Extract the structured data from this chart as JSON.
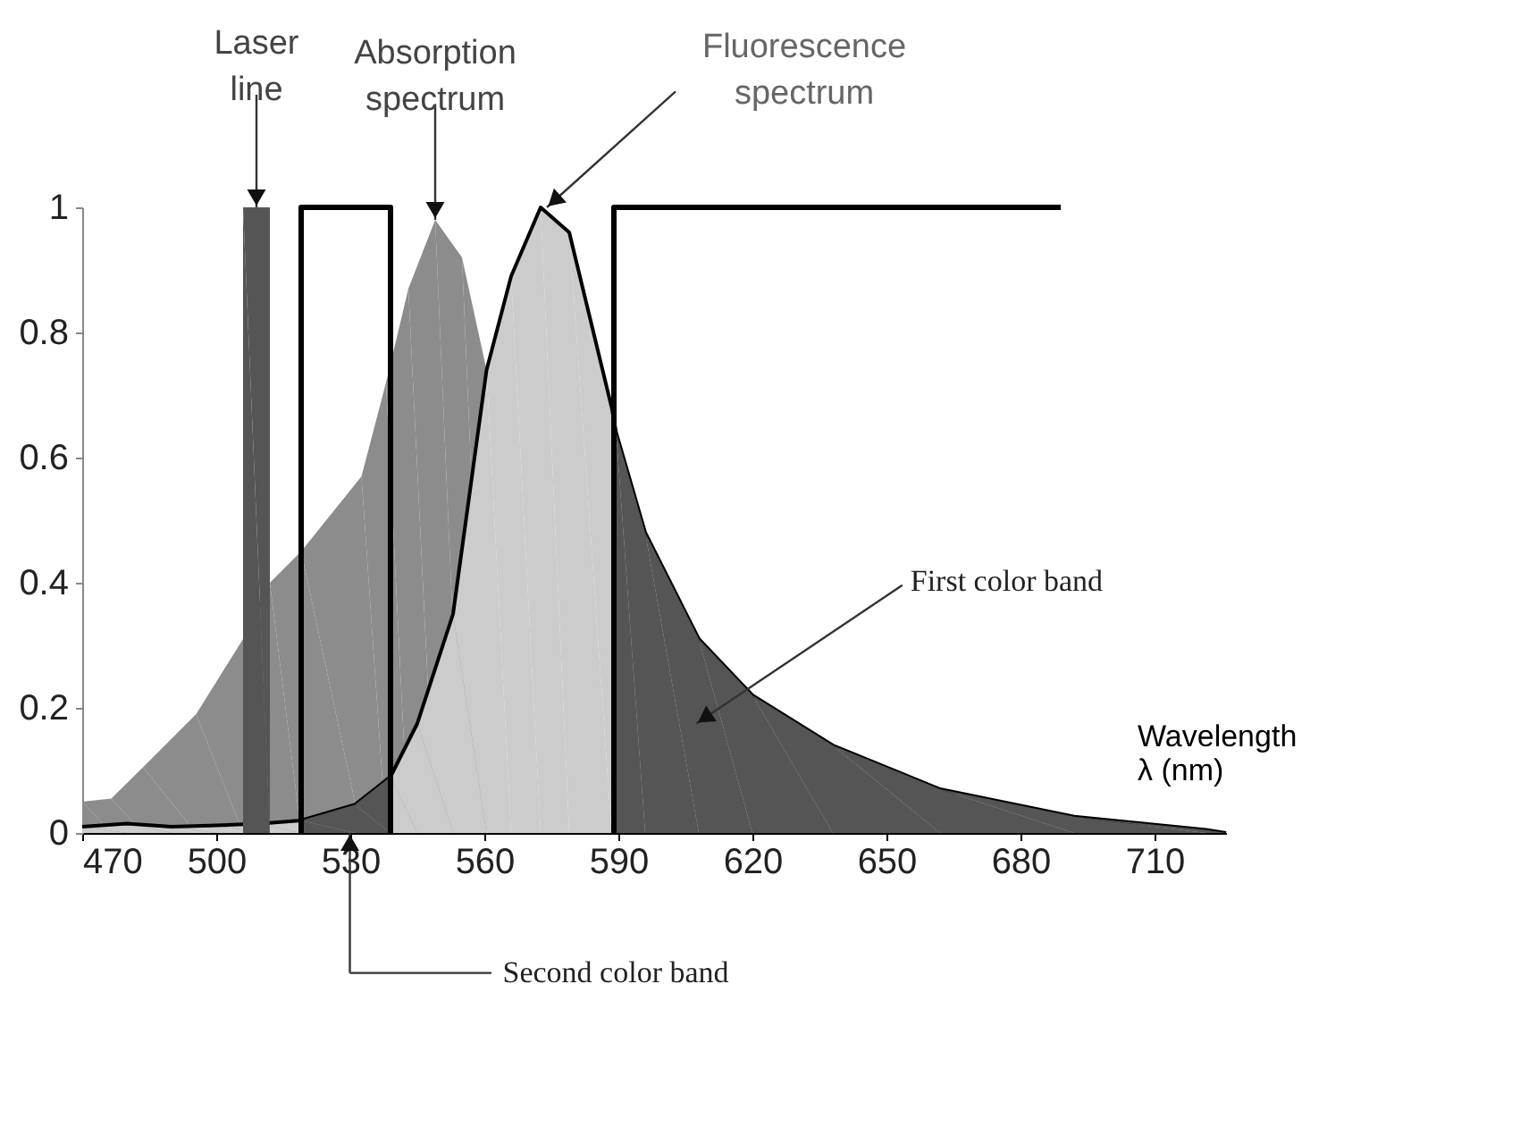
{
  "chart_data": {
    "type": "area",
    "xlabel": "Wavelength λ (nm)",
    "xlim": [
      470,
      726
    ],
    "ylim": [
      0,
      1
    ],
    "xticks": [
      470,
      500,
      530,
      560,
      590,
      620,
      650,
      680,
      710
    ],
    "yticks": [
      0,
      0.2,
      0.4,
      0.6,
      0.8,
      1
    ],
    "grid": false,
    "series": [
      {
        "color": "#8c8c8c",
        "x": [
          470,
          476.5,
          483.6,
          495.5,
          506,
          512,
          519,
          532.5,
          538,
          543,
          549,
          555,
          560.5
        ],
        "values": [
          0.05,
          0.055,
          0.105,
          0.19,
          0.31,
          0.4,
          0.45,
          0.57,
          0.72,
          0.87,
          0.98,
          0.92,
          0.74
        ]
      },
      {
        "color": "#cccccc",
        "x": [
          470,
          480,
          490,
          500,
          510,
          519,
          531,
          539,
          545,
          553,
          560.5,
          566,
          572.6,
          579,
          588.5,
          589.5,
          596,
          608,
          620,
          638,
          662,
          692,
          721.5,
          726
        ],
        "values": [
          0.01,
          0.015,
          0.01,
          0.012,
          0.015,
          0.02,
          0.045,
          0.09,
          0.175,
          0.35,
          0.74,
          0.89,
          1.0,
          0.96,
          0.68,
          0.64,
          0.48,
          0.31,
          0.22,
          0.14,
          0.07,
          0.026,
          0.005,
          0
        ]
      },
      {
        "type": "area",
        "color": "#555555",
        "x": [
          519,
          531,
          539
        ],
        "values": [
          0.02,
          0.045,
          0.09
        ]
      },
      {
        "type": "area",
        "color": "#555555",
        "x": [
          589,
          589.5,
          596,
          608,
          620,
          638,
          662,
          692,
          721.5,
          726
        ],
        "values": [
          0.66,
          0.64,
          0.48,
          0.31,
          0.22,
          0.14,
          0.07,
          0.026,
          0.005,
          0
        ]
      },
      {
        "type": "area",
        "color": "#555555",
        "x": [
          506,
          512
        ],
        "values": [
          1,
          1
        ]
      },
      {
        "type": "line",
        "color": "#000000",
        "x": [
          519,
          519,
          539,
          539
        ],
        "values": [
          0,
          1,
          1,
          0
        ]
      },
      {
        "type": "line",
        "color": "#000000",
        "x": [
          589,
          589,
          689
        ],
        "values": [
          0,
          1,
          1
        ]
      }
    ],
    "annotations": [
      {
        "text": "Laser line",
        "x": 509,
        "y": 1
      },
      {
        "text": "Absorption spectrum",
        "x": 549,
        "y": 0.98
      },
      {
        "text": "Fluorescence spectrum",
        "x": 574,
        "y": 1.0
      },
      "First color band",
      "Second color band"
    ]
  }
}
